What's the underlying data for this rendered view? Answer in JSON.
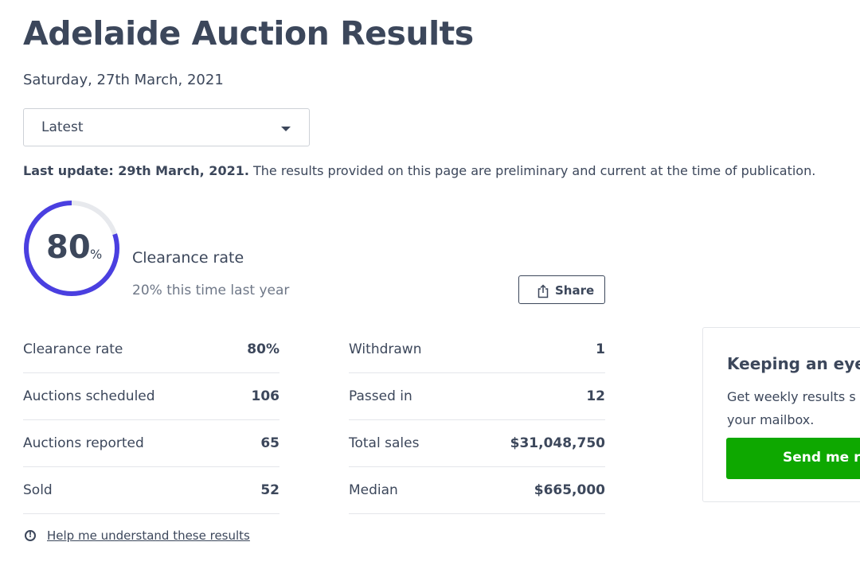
{
  "page": {
    "title": "Adelaide Auction Results",
    "date": "Saturday, 27th March, 2021"
  },
  "filter": {
    "selected": "Latest"
  },
  "notice": {
    "bold": "Last update: 29th March, 2021.",
    "text": " The results provided on this page are preliminary and current at the time of publication."
  },
  "summary": {
    "rate_number": "80",
    "rate_symbol": "%",
    "rate_fraction": 0.8,
    "label": "Clearance rate",
    "comparison": "20% this time last year",
    "ring_color": "#4a3fe0",
    "ring_track_color": "#e7e9ed"
  },
  "share": {
    "label": "Share",
    "icon": "share-icon"
  },
  "stats_left": [
    {
      "label": "Clearance rate",
      "value": "80%"
    },
    {
      "label": "Auctions scheduled",
      "value": "106"
    },
    {
      "label": "Auctions reported",
      "value": "65"
    },
    {
      "label": "Sold",
      "value": "52"
    }
  ],
  "stats_right": [
    {
      "label": "Withdrawn",
      "value": "1"
    },
    {
      "label": "Passed in",
      "value": "12"
    },
    {
      "label": "Total sales",
      "value": "$31,048,750"
    },
    {
      "label": "Median",
      "value": "$665,000"
    }
  ],
  "help": {
    "label": "Help me understand these results",
    "icon": "info-icon"
  },
  "card": {
    "title": "Keeping an eye",
    "text": "Get weekly results s your mailbox.",
    "button": "Send me re",
    "button_color": "#0ea800"
  }
}
